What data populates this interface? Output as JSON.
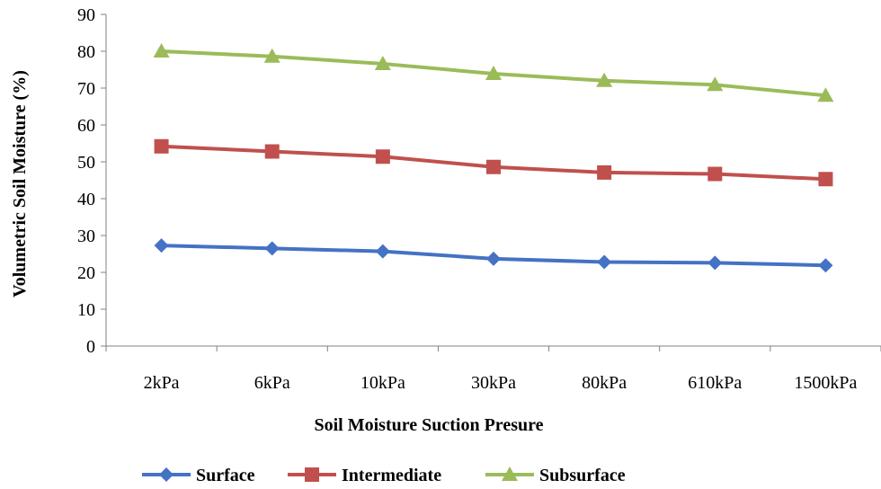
{
  "chart_data": {
    "type": "line",
    "categories": [
      "2kPa",
      "6kPa",
      "10kPa",
      "30kPa",
      "80kPa",
      "610kPa",
      "1500kPa"
    ],
    "series": [
      {
        "name": "Surface",
        "color": "#4472C4",
        "marker": "diamond",
        "values": [
          27.3,
          26.5,
          25.7,
          23.7,
          22.8,
          22.6,
          21.9
        ]
      },
      {
        "name": "Intermediate",
        "color": "#C0504D",
        "marker": "square",
        "values": [
          54.2,
          52.8,
          51.4,
          48.6,
          47.1,
          46.7,
          45.3
        ]
      },
      {
        "name": "Subsurface",
        "color": "#9BBB59",
        "marker": "triangle",
        "values": [
          80.0,
          78.6,
          76.6,
          73.9,
          72.0,
          70.9,
          68.0
        ]
      }
    ],
    "xlabel": "Soil Moisture Suction Presure",
    "ylabel": "Volumetric Soil Moisture (%)",
    "ylim": [
      0,
      90
    ],
    "yticks": [
      "0",
      "10",
      "20",
      "30",
      "40",
      "50",
      "60",
      "70",
      "80",
      "90"
    ],
    "grid": false,
    "legend_position": "bottom"
  }
}
